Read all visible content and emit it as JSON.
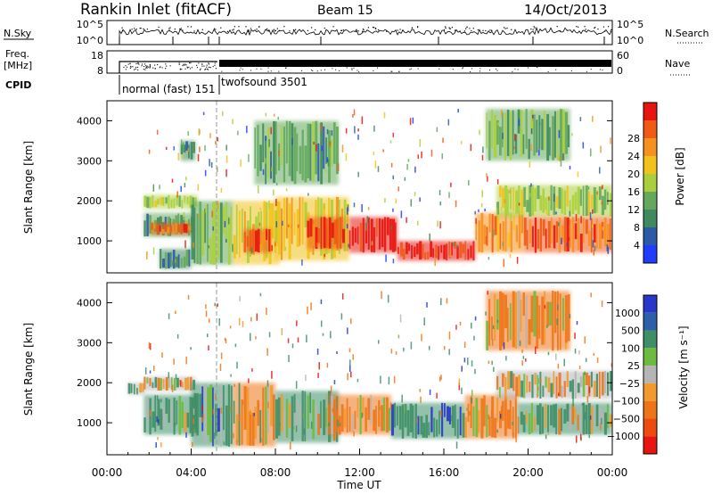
{
  "header": {
    "station": "Rankin Inlet (fitACF)",
    "beam": "Beam 15",
    "date": "14/Oct/2013"
  },
  "colors": {
    "power_scale": [
      "#1f3cff",
      "#2c5aa8",
      "#3f8a5c",
      "#63a85c",
      "#aacf3a",
      "#f2c21c",
      "#f6901f",
      "#f05a14",
      "#e8150f"
    ],
    "velocity_scale": [
      "#2637c9",
      "#2e5faa",
      "#3e8f67",
      "#6dbb3e",
      "#b5b5b5",
      "#f29a2e",
      "#ee7418",
      "#ee4a10",
      "#e8150f"
    ],
    "ground_scatter": "#a0a0a0",
    "divider": "#9a9a9a"
  },
  "chart_data": [
    {
      "type": "line",
      "panel": "n-sky-n-search",
      "left_label": "N.Sky",
      "right_label": "N.Search",
      "left_ticks": [
        "10^5",
        "10^0"
      ],
      "right_ticks": [
        "10^5",
        "10^0"
      ],
      "right_legend_line": "dotted",
      "xlim": [
        "00:00",
        "24:00"
      ]
    },
    {
      "type": "line",
      "panel": "freq-nave",
      "left_label_line1": "Freq.",
      "left_label_line2": "[MHz]",
      "right_label": "Nave",
      "left_ticks": [
        18,
        8
      ],
      "right_ticks": [
        60,
        0
      ],
      "ylim_freq_mhz": [
        8,
        18
      ],
      "ylim_nave": [
        0,
        60
      ],
      "right_legend_line": "dotted"
    },
    {
      "type": "table",
      "panel": "cpid",
      "label": "CPID",
      "segments": [
        {
          "name": "normal (fast) 151",
          "start": "01:45",
          "end": "06:00"
        },
        {
          "name": "twofsound 3501",
          "start": "06:00",
          "end": "24:00"
        }
      ]
    },
    {
      "type": "heatmap",
      "panel": "power",
      "ylabel": "Slant Range [km]",
      "xlim": [
        0,
        24
      ],
      "ylim": [
        200,
        4500
      ],
      "yticks": [
        1000,
        2000,
        3000,
        4000
      ],
      "colorbar_label": "Power [dB]",
      "colorbar_ticks": [
        "4",
        "8",
        "12",
        "16",
        "20",
        "24",
        "28"
      ],
      "colorbar_range": [
        0,
        30
      ],
      "blobs": [
        {
          "t0": 1.75,
          "t1": 4.3,
          "r0": 1800,
          "r1": 2150,
          "value": 14
        },
        {
          "t0": 1.75,
          "t1": 4.1,
          "r0": 1100,
          "r1": 1700,
          "value": 10
        },
        {
          "t0": 2.1,
          "t1": 4.0,
          "r0": 1150,
          "r1": 1450,
          "value": 24
        },
        {
          "t0": 2.5,
          "t1": 4.0,
          "r0": 300,
          "r1": 800,
          "value": 8
        },
        {
          "t0": 3.5,
          "t1": 4.2,
          "r0": 3000,
          "r1": 3500,
          "value": 8
        },
        {
          "t0": 4.0,
          "t1": 6.0,
          "r0": 400,
          "r1": 2000,
          "value": 12
        },
        {
          "t0": 6.0,
          "t1": 8.2,
          "r0": 400,
          "r1": 2000,
          "value": 18
        },
        {
          "t0": 6.5,
          "t1": 7.8,
          "r0": 700,
          "r1": 1300,
          "value": 26
        },
        {
          "t0": 8.0,
          "t1": 11.5,
          "r0": 500,
          "r1": 2100,
          "value": 18
        },
        {
          "t0": 9.5,
          "t1": 11.3,
          "r0": 800,
          "r1": 1600,
          "value": 26
        },
        {
          "t0": 11.5,
          "t1": 13.8,
          "r0": 700,
          "r1": 1600,
          "value": 29
        },
        {
          "t0": 13.8,
          "t1": 17.5,
          "r0": 500,
          "r1": 1000,
          "value": 29
        },
        {
          "t0": 17.5,
          "t1": 19.8,
          "r0": 700,
          "r1": 1700,
          "value": 22
        },
        {
          "t0": 18.5,
          "t1": 24.0,
          "r0": 1600,
          "r1": 2400,
          "value": 14
        },
        {
          "t0": 19.8,
          "t1": 24.0,
          "r0": 700,
          "r1": 1600,
          "value": 24
        },
        {
          "t0": 18.0,
          "t1": 22.0,
          "r0": 3000,
          "r1": 4300,
          "value": 12
        },
        {
          "t0": 7.0,
          "t1": 11.0,
          "r0": 2400,
          "r1": 4000,
          "value": 10
        }
      ]
    },
    {
      "type": "heatmap",
      "panel": "velocity",
      "ylabel": "Slant Range [km]",
      "xlabel": "Time UT",
      "xticks": [
        "00:00",
        "04:00",
        "08:00",
        "12:00",
        "16:00",
        "20:00",
        "00:00"
      ],
      "xlim": [
        0,
        24
      ],
      "ylim": [
        200,
        4500
      ],
      "yticks": [
        1000,
        2000,
        3000,
        4000
      ],
      "colorbar_label": "Velocity [m s⁻¹]",
      "colorbar_ticks": [
        "1000",
        "500",
        "100",
        "25",
        "−25",
        "−100",
        "−500",
        "−1000"
      ],
      "blobs": [
        {
          "t0": 1.75,
          "t1": 4.2,
          "r0": 1800,
          "r1": 2150,
          "value": 0
        },
        {
          "t0": 1.75,
          "t1": 4.3,
          "r0": 700,
          "r1": 1700,
          "value": 150
        },
        {
          "t0": 1.0,
          "t1": 1.8,
          "r0": 1700,
          "r1": 2000,
          "value": 0
        },
        {
          "t0": 4.0,
          "t1": 6.0,
          "r0": 400,
          "r1": 2000,
          "value": 300
        },
        {
          "t0": 6.0,
          "t1": 8.0,
          "r0": 400,
          "r1": 2000,
          "value": -150
        },
        {
          "t0": 8.0,
          "t1": 11.0,
          "r0": 500,
          "r1": 1800,
          "value": 120
        },
        {
          "t0": 10.5,
          "t1": 13.5,
          "r0": 700,
          "r1": 1700,
          "value": -200
        },
        {
          "t0": 13.5,
          "t1": 17.0,
          "r0": 600,
          "r1": 1500,
          "value": 400
        },
        {
          "t0": 17.0,
          "t1": 19.5,
          "r0": 600,
          "r1": 1700,
          "value": -200
        },
        {
          "t0": 18.5,
          "t1": 24.0,
          "r0": 1600,
          "r1": 2300,
          "value": 0
        },
        {
          "t0": 19.5,
          "t1": 24.0,
          "r0": 700,
          "r1": 1500,
          "value": 120
        },
        {
          "t0": 18.0,
          "t1": 22.0,
          "r0": 2800,
          "r1": 4300,
          "value": -200
        }
      ]
    }
  ]
}
